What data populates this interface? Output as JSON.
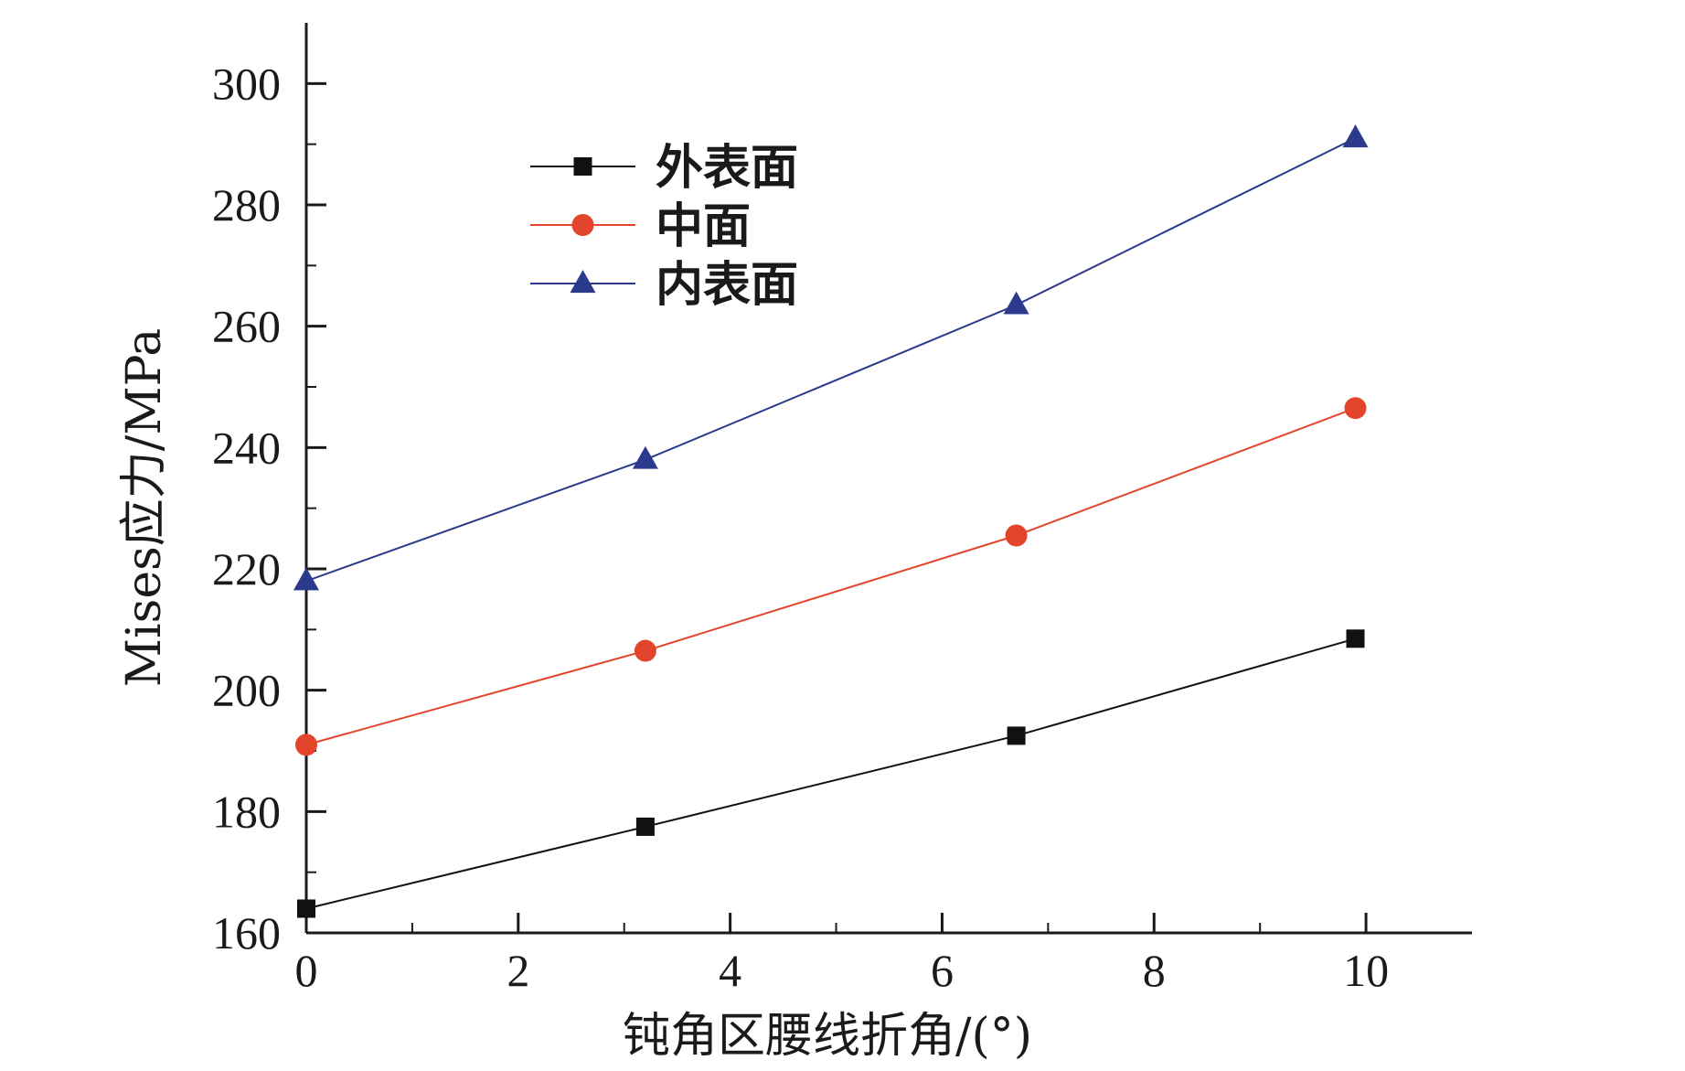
{
  "chart_data": {
    "type": "line",
    "xlabel": "钝角区腰线折角/(°)",
    "ylabel": "Mises应力/MPa",
    "xlim": [
      0,
      11
    ],
    "ylim": [
      160,
      310
    ],
    "xticks": [
      0,
      2,
      4,
      6,
      8,
      10
    ],
    "yticks": [
      160,
      180,
      200,
      220,
      240,
      260,
      280,
      300
    ],
    "x": [
      0,
      3.2,
      6.7,
      9.9
    ],
    "legend_position": "top-left",
    "series": [
      {
        "name": "外表面",
        "values": [
          164,
          177.5,
          192.5,
          208.5
        ],
        "color": "#111111",
        "marker": "square"
      },
      {
        "name": "中面",
        "values": [
          191,
          206.5,
          225.5,
          246.5
        ],
        "color": "#e2452b",
        "marker": "circle"
      },
      {
        "name": "内表面",
        "values": [
          218,
          238,
          263.5,
          291
        ],
        "color": "#2b3a8c",
        "marker": "triangle"
      }
    ]
  }
}
